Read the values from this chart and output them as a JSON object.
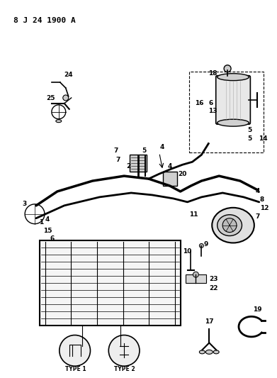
{
  "title": "8 J 24 1900 A",
  "bg_color": "#ffffff",
  "fg_color": "#000000",
  "fig_width": 3.91,
  "fig_height": 5.33,
  "dpi": 100
}
